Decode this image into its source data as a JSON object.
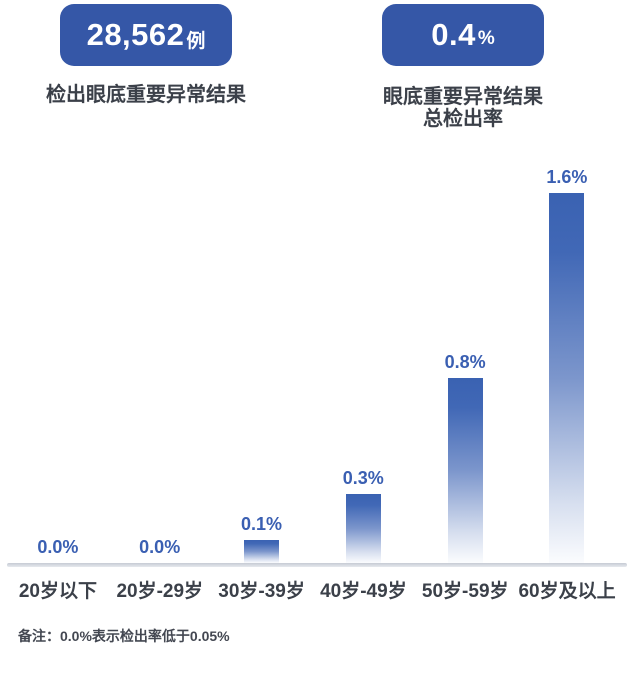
{
  "header": {
    "stat1": {
      "value": "28,562",
      "unit": "例",
      "label": "检出眼底重要异常结果"
    },
    "stat2": {
      "value": "0.4",
      "unit": "%",
      "label_line1": "眼底重要异常结果",
      "label_line2": "总检出率"
    }
  },
  "chart_data": {
    "type": "bar",
    "categories": [
      "20岁以下",
      "20岁-29岁",
      "30岁-39岁",
      "40岁-49岁",
      "50岁-59岁",
      "60岁及以上"
    ],
    "values": [
      0.0,
      0.0,
      0.1,
      0.3,
      0.8,
      1.6
    ],
    "value_labels": [
      "0.0%",
      "0.0%",
      "0.1%",
      "0.3%",
      "0.8%",
      "1.6%"
    ],
    "unit": "%",
    "ylim": [
      0,
      1.6
    ],
    "grid": false,
    "legend": false,
    "xlabel": "",
    "ylabel": ""
  },
  "footnote": "备注：0.0%表示检出率低于0.05%",
  "colors": {
    "badge_bg": "#3557A7",
    "value_label": "#3A5FB2",
    "bar_top": "#3A62B2",
    "bar_bottom": "#FFFFFF",
    "text": "#3B4049",
    "axis": "#C6CBD4"
  }
}
